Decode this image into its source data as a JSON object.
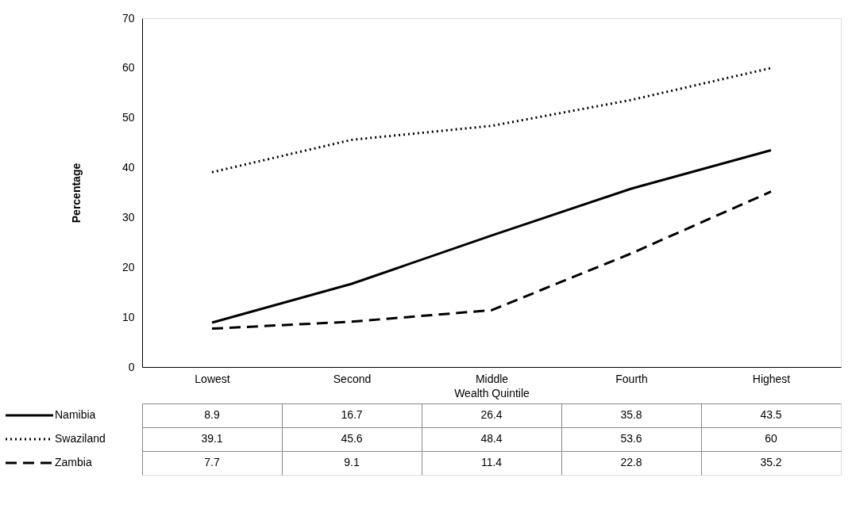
{
  "chart_data": {
    "type": "line",
    "xlabel": "Wealth Quintile",
    "ylabel": "Percentage",
    "categories": [
      "Lowest",
      "Second",
      "Middle",
      "Fourth",
      "Highest"
    ],
    "series": [
      {
        "name": "Namibia",
        "color": "#000000",
        "line_style": "solid",
        "values": [
          8.9,
          16.7,
          26.4,
          35.8,
          43.5
        ]
      },
      {
        "name": "Swaziland",
        "color": "#000000",
        "line_style": "dotted",
        "values": [
          39.1,
          45.6,
          48.4,
          53.6,
          60
        ]
      },
      {
        "name": "Zambia",
        "color": "#000000",
        "line_style": "dashed",
        "values": [
          7.7,
          9.1,
          11.4,
          22.8,
          35.2
        ]
      }
    ],
    "ylim": [
      0,
      70
    ],
    "yticks": [
      0,
      10,
      20,
      30,
      40,
      50,
      60,
      70
    ],
    "grid": false,
    "legend": "bottom",
    "data_labels": true,
    "marker": "none"
  }
}
